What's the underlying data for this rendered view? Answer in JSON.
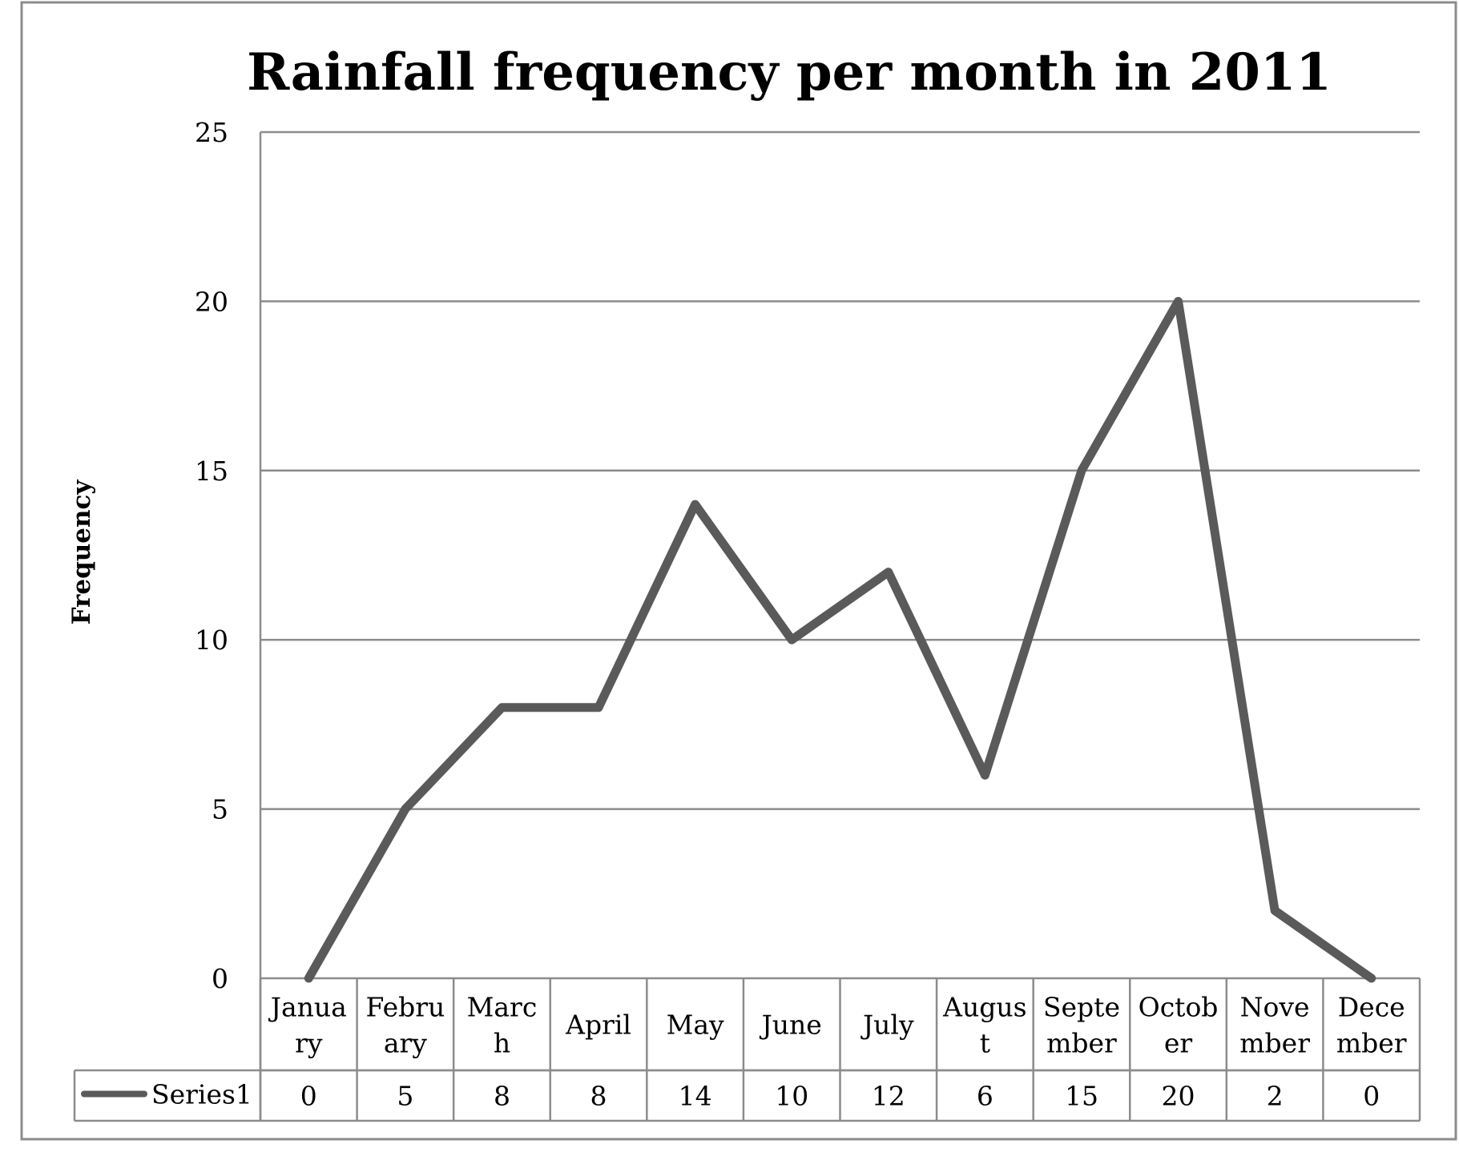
{
  "chart_data": {
    "type": "line",
    "title": "Rainfall frequency per month in 2011",
    "xlabel": "",
    "ylabel": "Frequency",
    "ylim": [
      0,
      25
    ],
    "yticks": [
      "0",
      "5",
      "10",
      "15",
      "20",
      "25"
    ],
    "grid": true,
    "legend": "data-table-left",
    "categories": [
      "January",
      "February",
      "March",
      "April",
      "May",
      "June",
      "July",
      "August",
      "September",
      "October",
      "November",
      "December"
    ],
    "category_labels_wrapped": [
      [
        "Janua",
        "ry"
      ],
      [
        "Febru",
        "ary"
      ],
      [
        "Marc",
        "h"
      ],
      [
        "April"
      ],
      [
        "May"
      ],
      [
        "June"
      ],
      [
        "July"
      ],
      [
        "Augus",
        "t"
      ],
      [
        "Septe",
        "mber"
      ],
      [
        "Octob",
        "er"
      ],
      [
        "Nove",
        "mber"
      ],
      [
        "Dece",
        "mber"
      ]
    ],
    "series": [
      {
        "name": "Series1",
        "values": [
          0,
          5,
          8,
          8,
          14,
          10,
          12,
          6,
          15,
          20,
          2,
          0
        ],
        "color": "#5a5a5a"
      }
    ]
  }
}
